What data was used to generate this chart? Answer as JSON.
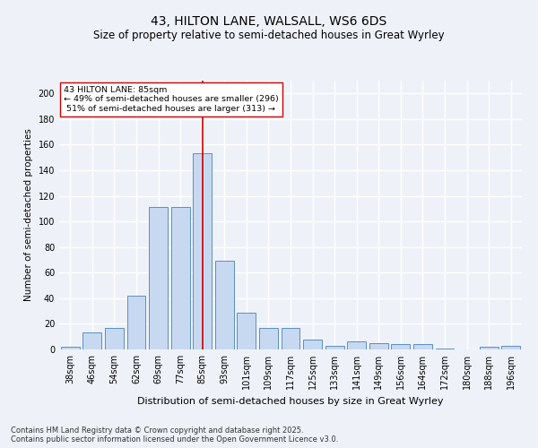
{
  "title": "43, HILTON LANE, WALSALL, WS6 6DS",
  "subtitle": "Size of property relative to semi-detached houses in Great Wyrley",
  "xlabel": "Distribution of semi-detached houses by size in Great Wyrley",
  "ylabel": "Number of semi-detached properties",
  "categories": [
    "38sqm",
    "46sqm",
    "54sqm",
    "62sqm",
    "69sqm",
    "77sqm",
    "85sqm",
    "93sqm",
    "101sqm",
    "109sqm",
    "117sqm",
    "125sqm",
    "133sqm",
    "141sqm",
    "149sqm",
    "156sqm",
    "164sqm",
    "172sqm",
    "180sqm",
    "188sqm",
    "196sqm"
  ],
  "values": [
    2,
    13,
    17,
    42,
    111,
    111,
    153,
    69,
    29,
    17,
    17,
    8,
    3,
    6,
    5,
    4,
    4,
    1,
    0,
    2,
    3
  ],
  "bar_color": "#c7d9f0",
  "bar_edge_color": "#5a8fc2",
  "highlight_index": 6,
  "vline_color": "#cc0000",
  "smaller_pct": "49%",
  "smaller_count": 296,
  "larger_pct": "51%",
  "larger_count": 313,
  "ylim": [
    0,
    210
  ],
  "yticks": [
    0,
    20,
    40,
    60,
    80,
    100,
    120,
    140,
    160,
    180,
    200
  ],
  "bg_color": "#eef2f8",
  "grid_color": "#ffffff",
  "footer": "Contains HM Land Registry data © Crown copyright and database right 2025.\nContains public sector information licensed under the Open Government Licence v3.0.",
  "title_fontsize": 10,
  "subtitle_fontsize": 8.5,
  "xlabel_fontsize": 8,
  "ylabel_fontsize": 7.5,
  "tick_fontsize": 7,
  "footer_fontsize": 6
}
